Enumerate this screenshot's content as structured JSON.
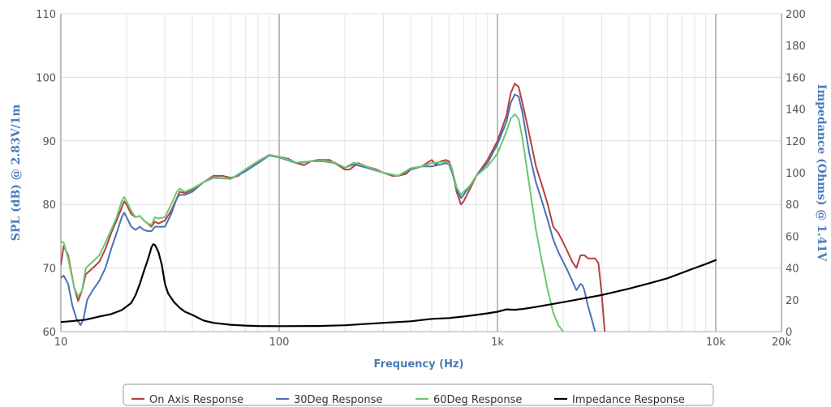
{
  "chart_data": {
    "type": "line",
    "title": "",
    "xlabel": "Frequency (Hz)",
    "ylabel": "SPL (dB) @ 2.83V/1m",
    "y2label": "Impedance (Ohms) @ 1.41V",
    "x_scale": "log",
    "xlim": [
      10,
      20000
    ],
    "ylim": [
      60,
      110
    ],
    "y2lim": [
      0,
      200
    ],
    "grid": true,
    "legend_position": "bottom",
    "x_ticks": [
      {
        "value": 10,
        "label": "10"
      },
      {
        "value": 100,
        "label": "100"
      },
      {
        "value": 1000,
        "label": "1k"
      },
      {
        "value": 10000,
        "label": "10k"
      },
      {
        "value": 20000,
        "label": "20k"
      }
    ],
    "y_ticks": [
      60,
      70,
      80,
      90,
      100,
      110
    ],
    "y2_ticks": [
      0,
      20,
      40,
      60,
      80,
      100,
      120,
      140,
      160,
      180,
      200
    ],
    "series": [
      {
        "name": "On Axis Response",
        "axis": "left",
        "color": "#b5413f",
        "points": [
          [
            10,
            70.5
          ],
          [
            10.3,
            73.5
          ],
          [
            10.8,
            72
          ],
          [
            11.5,
            67
          ],
          [
            12,
            64.8
          ],
          [
            12.5,
            66.5
          ],
          [
            13,
            69
          ],
          [
            14,
            70
          ],
          [
            15,
            71
          ],
          [
            16,
            73
          ],
          [
            17,
            75.5
          ],
          [
            18,
            77.5
          ],
          [
            19,
            79.5
          ],
          [
            19.5,
            80.5
          ],
          [
            20,
            80
          ],
          [
            21,
            78.5
          ],
          [
            22,
            78
          ],
          [
            23,
            78.2
          ],
          [
            24,
            77.5
          ],
          [
            25,
            77
          ],
          [
            26,
            76.5
          ],
          [
            27,
            77.3
          ],
          [
            28,
            77
          ],
          [
            30,
            77.5
          ],
          [
            32,
            79
          ],
          [
            34,
            81
          ],
          [
            35,
            82
          ],
          [
            37,
            81.8
          ],
          [
            40,
            82.3
          ],
          [
            45,
            83.5
          ],
          [
            50,
            84.5
          ],
          [
            55,
            84.5
          ],
          [
            60,
            84.2
          ],
          [
            65,
            84.5
          ],
          [
            70,
            85.5
          ],
          [
            80,
            86.8
          ],
          [
            90,
            87.8
          ],
          [
            100,
            87.5
          ],
          [
            110,
            87.2
          ],
          [
            120,
            86.5
          ],
          [
            130,
            86.2
          ],
          [
            140,
            86.8
          ],
          [
            150,
            87
          ],
          [
            160,
            87
          ],
          [
            170,
            87
          ],
          [
            180,
            86.5
          ],
          [
            200,
            85.5
          ],
          [
            210,
            85.5
          ],
          [
            220,
            86
          ],
          [
            230,
            86.5
          ],
          [
            250,
            86
          ],
          [
            280,
            85.5
          ],
          [
            300,
            85
          ],
          [
            330,
            84.5
          ],
          [
            350,
            84.5
          ],
          [
            380,
            84.8
          ],
          [
            400,
            85.5
          ],
          [
            450,
            86
          ],
          [
            500,
            87
          ],
          [
            520,
            86.3
          ],
          [
            550,
            86.8
          ],
          [
            580,
            87
          ],
          [
            600,
            86.8
          ],
          [
            620,
            85.5
          ],
          [
            650,
            82
          ],
          [
            680,
            80
          ],
          [
            700,
            80.5
          ],
          [
            750,
            82.5
          ],
          [
            800,
            84.5
          ],
          [
            900,
            87
          ],
          [
            1000,
            90
          ],
          [
            1100,
            94
          ],
          [
            1150,
            97.5
          ],
          [
            1200,
            99
          ],
          [
            1250,
            98.5
          ],
          [
            1300,
            96
          ],
          [
            1400,
            91
          ],
          [
            1500,
            86
          ],
          [
            1600,
            83
          ],
          [
            1700,
            80
          ],
          [
            1800,
            76.5
          ],
          [
            1900,
            75.5
          ],
          [
            2000,
            74
          ],
          [
            2100,
            72.5
          ],
          [
            2200,
            71
          ],
          [
            2300,
            70
          ],
          [
            2400,
            72
          ],
          [
            2500,
            72
          ],
          [
            2600,
            71.5
          ],
          [
            2800,
            71.5
          ],
          [
            2900,
            70.8
          ],
          [
            3000,
            66
          ],
          [
            3100,
            60
          ]
        ]
      },
      {
        "name": "30Deg Response",
        "axis": "left",
        "color": "#4a72b5",
        "points": [
          [
            10,
            68.5
          ],
          [
            10.3,
            68.8
          ],
          [
            10.8,
            67.5
          ],
          [
            11.3,
            64
          ],
          [
            11.8,
            62
          ],
          [
            12.3,
            61
          ],
          [
            12.7,
            62
          ],
          [
            13.2,
            65
          ],
          [
            14,
            66.5
          ],
          [
            15,
            68
          ],
          [
            16,
            70
          ],
          [
            17,
            73
          ],
          [
            18,
            75.5
          ],
          [
            19,
            78
          ],
          [
            19.5,
            78.7
          ],
          [
            20,
            78
          ],
          [
            21,
            76.5
          ],
          [
            22,
            76
          ],
          [
            23,
            76.5
          ],
          [
            24,
            76
          ],
          [
            25,
            75.8
          ],
          [
            26,
            75.8
          ],
          [
            27,
            76.5
          ],
          [
            28,
            76.5
          ],
          [
            30,
            76.5
          ],
          [
            32,
            78.5
          ],
          [
            34,
            81
          ],
          [
            35,
            81.5
          ],
          [
            37,
            81.5
          ],
          [
            40,
            82
          ],
          [
            45,
            83.5
          ],
          [
            50,
            84.2
          ],
          [
            60,
            84
          ],
          [
            70,
            85.2
          ],
          [
            80,
            86.5
          ],
          [
            90,
            87.7
          ],
          [
            100,
            87.4
          ],
          [
            120,
            86.5
          ],
          [
            140,
            86.8
          ],
          [
            160,
            86.8
          ],
          [
            180,
            86.5
          ],
          [
            200,
            85.8
          ],
          [
            220,
            86.3
          ],
          [
            250,
            85.8
          ],
          [
            300,
            85
          ],
          [
            350,
            84.5
          ],
          [
            400,
            85.5
          ],
          [
            450,
            86
          ],
          [
            500,
            86
          ],
          [
            550,
            86.3
          ],
          [
            580,
            86.5
          ],
          [
            600,
            86.3
          ],
          [
            620,
            85
          ],
          [
            650,
            82.5
          ],
          [
            680,
            81
          ],
          [
            700,
            81.5
          ],
          [
            750,
            83
          ],
          [
            800,
            84.5
          ],
          [
            900,
            86.5
          ],
          [
            1000,
            89.5
          ],
          [
            1100,
            93
          ],
          [
            1150,
            96
          ],
          [
            1200,
            97.3
          ],
          [
            1250,
            97
          ],
          [
            1300,
            94.5
          ],
          [
            1400,
            88
          ],
          [
            1500,
            83.5
          ],
          [
            1600,
            80.5
          ],
          [
            1700,
            77.5
          ],
          [
            1800,
            74.5
          ],
          [
            1900,
            72.5
          ],
          [
            2000,
            71
          ],
          [
            2100,
            69.5
          ],
          [
            2200,
            68
          ],
          [
            2300,
            66.5
          ],
          [
            2400,
            67.5
          ],
          [
            2450,
            67.3
          ],
          [
            2500,
            66.5
          ],
          [
            2600,
            64
          ],
          [
            2700,
            62
          ],
          [
            2800,
            60
          ]
        ]
      },
      {
        "name": "60Deg Response",
        "axis": "left",
        "color": "#6cc76f",
        "points": [
          [
            10,
            74.2
          ],
          [
            10.3,
            74
          ],
          [
            10.8,
            71.5
          ],
          [
            11.5,
            67
          ],
          [
            12,
            65.5
          ],
          [
            12.5,
            66.5
          ],
          [
            13,
            70
          ],
          [
            14,
            71
          ],
          [
            15,
            72
          ],
          [
            16,
            74
          ],
          [
            17,
            76
          ],
          [
            18,
            78
          ],
          [
            19,
            80.5
          ],
          [
            19.5,
            81.2
          ],
          [
            20,
            80.5
          ],
          [
            21,
            79
          ],
          [
            22,
            78
          ],
          [
            23,
            78.2
          ],
          [
            24,
            77.5
          ],
          [
            25,
            77
          ],
          [
            26,
            76.8
          ],
          [
            27,
            78
          ],
          [
            28,
            77.8
          ],
          [
            30,
            78
          ],
          [
            32,
            80
          ],
          [
            34,
            82
          ],
          [
            35,
            82.5
          ],
          [
            37,
            82
          ],
          [
            40,
            82.5
          ],
          [
            45,
            83.5
          ],
          [
            50,
            84.3
          ],
          [
            60,
            84
          ],
          [
            70,
            85.5
          ],
          [
            80,
            86.8
          ],
          [
            90,
            87.8
          ],
          [
            100,
            87.5
          ],
          [
            120,
            86.6
          ],
          [
            140,
            86.8
          ],
          [
            160,
            86.9
          ],
          [
            180,
            86.6
          ],
          [
            200,
            85.8
          ],
          [
            220,
            86.6
          ],
          [
            250,
            86
          ],
          [
            300,
            85
          ],
          [
            350,
            84.5
          ],
          [
            400,
            85.7
          ],
          [
            450,
            86
          ],
          [
            500,
            86.5
          ],
          [
            550,
            86.7
          ],
          [
            580,
            86.7
          ],
          [
            600,
            86.5
          ],
          [
            620,
            85.5
          ],
          [
            650,
            82.7
          ],
          [
            680,
            81.5
          ],
          [
            700,
            82
          ],
          [
            750,
            83
          ],
          [
            800,
            84.5
          ],
          [
            900,
            86
          ],
          [
            1000,
            88
          ],
          [
            1100,
            91.5
          ],
          [
            1150,
            93.5
          ],
          [
            1200,
            94.2
          ],
          [
            1250,
            93.5
          ],
          [
            1300,
            90.5
          ],
          [
            1400,
            83
          ],
          [
            1500,
            76
          ],
          [
            1600,
            71
          ],
          [
            1700,
            66.5
          ],
          [
            1800,
            63
          ],
          [
            1900,
            61
          ],
          [
            2000,
            60
          ]
        ]
      },
      {
        "name": "Impedance Response",
        "axis": "right",
        "color": "#000000",
        "points": [
          [
            10,
            6
          ],
          [
            11,
            6.5
          ],
          [
            12,
            7
          ],
          [
            13,
            7.5
          ],
          [
            14,
            8.5
          ],
          [
            15,
            9.5
          ],
          [
            17,
            11
          ],
          [
            19,
            13.5
          ],
          [
            21,
            18
          ],
          [
            22,
            23
          ],
          [
            23,
            30
          ],
          [
            24,
            38
          ],
          [
            25,
            45
          ],
          [
            25.5,
            49
          ],
          [
            26,
            53
          ],
          [
            26.5,
            55
          ],
          [
            27,
            54.5
          ],
          [
            28,
            50
          ],
          [
            29,
            42
          ],
          [
            30,
            30
          ],
          [
            31,
            24
          ],
          [
            33,
            18.5
          ],
          [
            35,
            15
          ],
          [
            37,
            12.5
          ],
          [
            40,
            10.5
          ],
          [
            45,
            7
          ],
          [
            50,
            5.5
          ],
          [
            60,
            4.3
          ],
          [
            70,
            3.8
          ],
          [
            80,
            3.5
          ],
          [
            100,
            3.4
          ],
          [
            150,
            3.5
          ],
          [
            200,
            4
          ],
          [
            300,
            5.5
          ],
          [
            400,
            6.5
          ],
          [
            500,
            8
          ],
          [
            600,
            8.5
          ],
          [
            700,
            9.5
          ],
          [
            800,
            10.5
          ],
          [
            900,
            11.5
          ],
          [
            1000,
            12.5
          ],
          [
            1100,
            14
          ],
          [
            1200,
            13.7
          ],
          [
            1300,
            14.2
          ],
          [
            1500,
            15.5
          ],
          [
            2000,
            18.5
          ],
          [
            3000,
            23
          ],
          [
            4000,
            27
          ],
          [
            5000,
            30.5
          ],
          [
            6000,
            33.5
          ],
          [
            7000,
            37
          ],
          [
            8000,
            40
          ],
          [
            9000,
            42.5
          ],
          [
            10000,
            45
          ]
        ]
      }
    ],
    "legend": [
      {
        "label": "On Axis Response",
        "color": "#b5413f"
      },
      {
        "label": "30Deg Response",
        "color": "#4a72b5"
      },
      {
        "label": "60Deg Response",
        "color": "#6cc76f"
      },
      {
        "label": "Impedance Response",
        "color": "#000000"
      }
    ]
  }
}
